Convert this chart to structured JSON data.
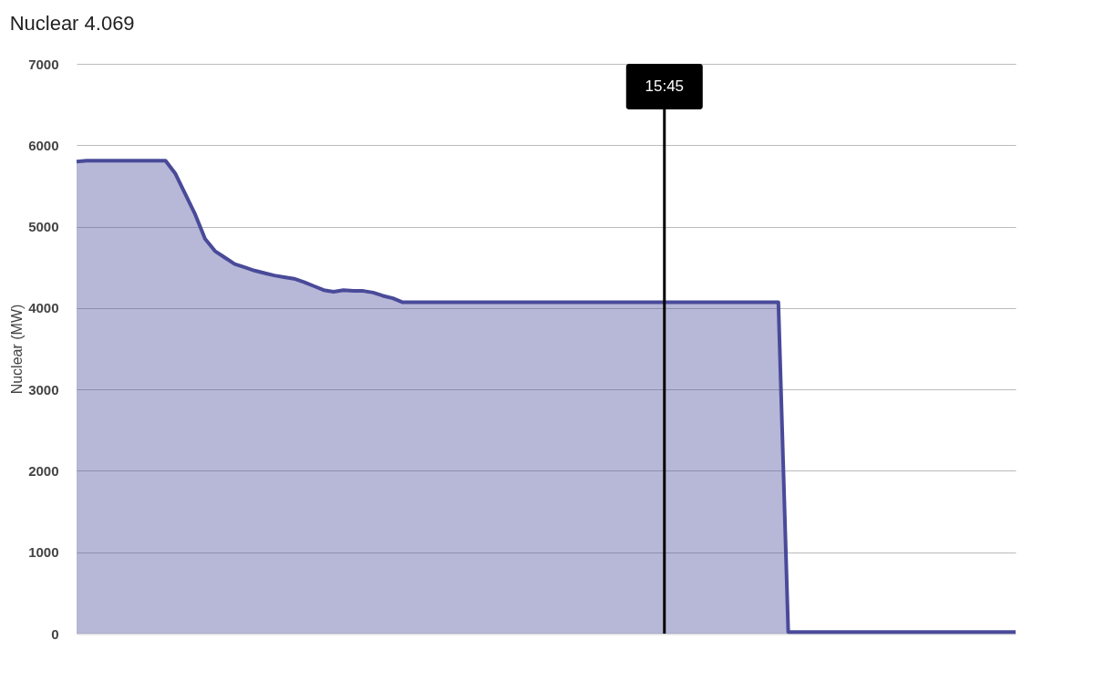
{
  "chart_data": {
    "type": "area",
    "title": "Nuclear 4.069",
    "ylabel": "Nuclear (MW)",
    "categories": [
      null,
      null,
      null,
      null,
      null,
      null,
      null,
      null,
      null,
      null,
      null,
      null,
      null,
      null,
      null,
      null,
      null,
      null,
      null,
      null,
      null,
      null,
      null,
      null,
      null,
      null,
      null,
      null,
      null,
      null,
      null,
      null,
      null,
      null,
      null,
      null,
      null,
      null,
      null,
      null,
      null,
      null,
      null,
      null,
      null,
      null,
      null,
      null,
      null,
      null,
      null,
      null,
      null,
      null,
      null,
      null,
      null,
      null,
      null,
      null,
      null,
      null,
      null,
      null,
      null,
      null,
      null,
      null,
      null,
      null,
      null,
      null,
      null,
      null,
      null,
      null,
      null,
      null,
      null,
      null,
      null,
      null,
      null,
      null,
      null,
      null,
      null,
      null,
      null,
      null,
      null,
      null,
      null,
      null,
      null,
      null
    ],
    "series": [
      {
        "color": "#4a4a9a",
        "values": [
          5800,
          5810,
          5810,
          5810,
          5810,
          5810,
          5810,
          5810,
          5810,
          5810,
          5650,
          5400,
          5150,
          4850,
          4700,
          4620,
          4540,
          4500,
          4460,
          4430,
          4400,
          4380,
          4360,
          4320,
          4270,
          4220,
          4200,
          4220,
          4210,
          4210,
          4190,
          4150,
          4120,
          4070,
          4070,
          4070,
          4070,
          4070,
          4070,
          4070,
          4070,
          4070,
          4070,
          4070,
          4070,
          4070,
          4070,
          4070,
          4070,
          4070,
          4070,
          4070,
          4070,
          4070,
          4070,
          4070,
          4070,
          4070,
          4070,
          4070,
          4070,
          4070,
          4070,
          4070,
          4070,
          4070,
          4070,
          4070,
          4070,
          4070,
          4070,
          4070,
          20,
          20,
          20,
          20,
          20,
          20,
          20,
          20,
          20,
          20,
          20,
          20,
          20,
          20,
          20,
          20,
          20,
          20,
          20,
          20,
          20,
          20,
          20,
          20
        ]
      }
    ],
    "ylim": [
      0,
      7000
    ],
    "yticks": [
      0,
      1000,
      2000,
      3000,
      4000,
      5000,
      6000,
      7000
    ],
    "tick_labels": "y",
    "grid": "y",
    "annotations": [
      "15:45"
    ]
  }
}
